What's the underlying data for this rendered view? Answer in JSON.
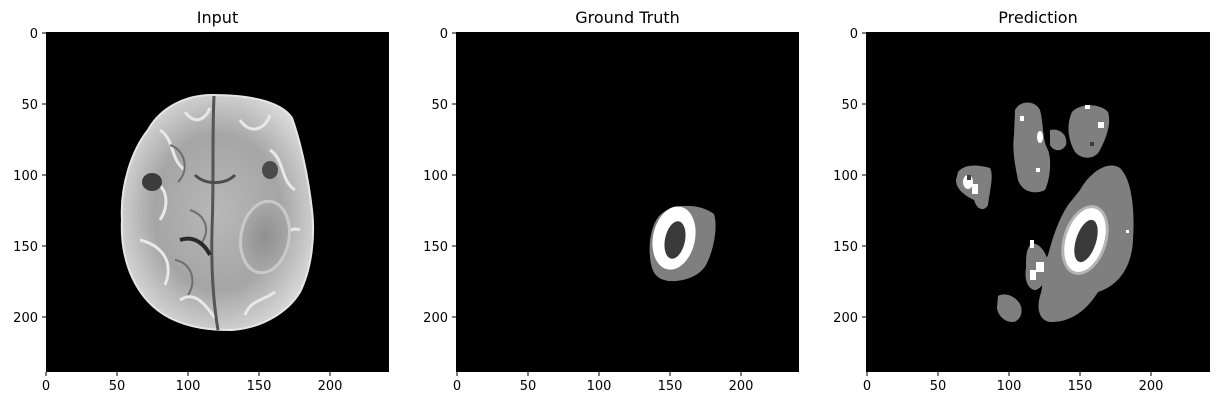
{
  "figure": {
    "panels": [
      {
        "title": "Input",
        "kind": "mri"
      },
      {
        "title": "Ground Truth",
        "kind": "ground_truth"
      },
      {
        "title": "Prediction",
        "kind": "prediction"
      }
    ],
    "x_ticks": [
      "0",
      "50",
      "100",
      "150",
      "200"
    ],
    "y_ticks": [
      "0",
      "50",
      "100",
      "150",
      "200"
    ],
    "colors": {
      "background": "#000000",
      "edema": "#7f7f7f",
      "enhancing": "#ffffff",
      "necrotic": "#3a3a3a",
      "brain_light": "#c8c8c8",
      "brain_mid": "#9a9a9a"
    }
  }
}
